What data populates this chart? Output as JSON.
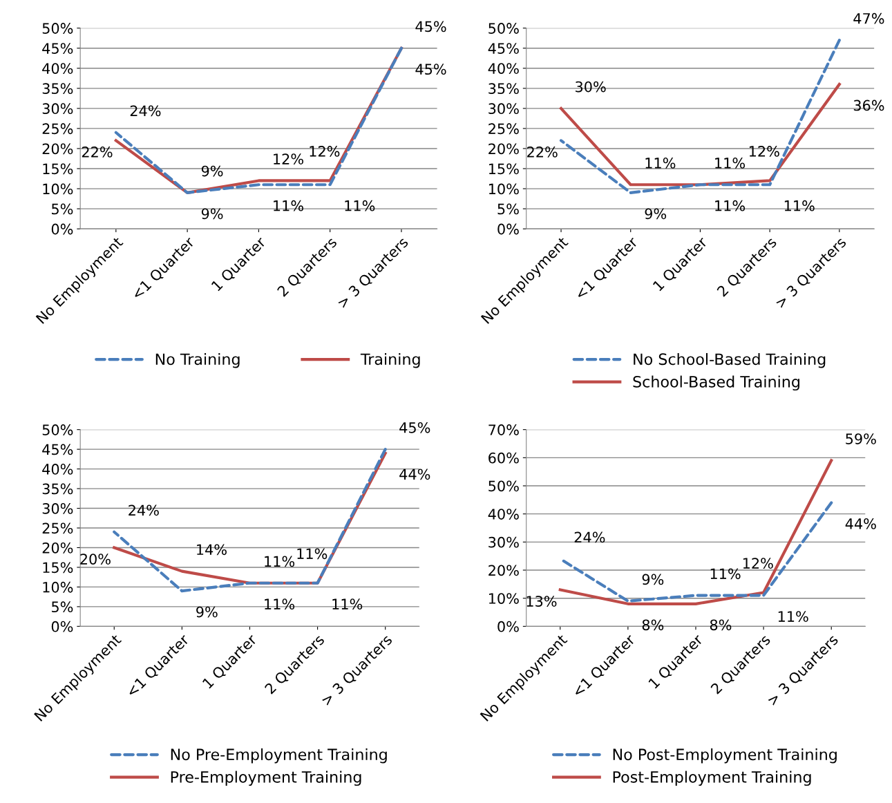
{
  "chart_data": [
    {
      "type": "line",
      "categories": [
        "No Employment",
        "<1 Quarter",
        "1 Quarter",
        "2 Quarters",
        "> 3 Quarters"
      ],
      "ylim": [
        0,
        50
      ],
      "yticks": [
        {
          "value": 0,
          "label": "0%"
        },
        {
          "value": 5,
          "label": "5%"
        },
        {
          "value": 10,
          "label": "10%"
        },
        {
          "value": 15,
          "label": "15%"
        },
        {
          "value": 20,
          "label": "20%"
        },
        {
          "value": 25,
          "label": "25%"
        },
        {
          "value": 30,
          "label": "30%"
        },
        {
          "value": 35,
          "label": "35%"
        },
        {
          "value": 40,
          "label": "40%"
        },
        {
          "value": 45,
          "label": "45%"
        },
        {
          "value": 50,
          "label": "50%"
        }
      ],
      "grid": "y",
      "legend": "bottom",
      "marker": "none",
      "series": [
        {
          "name": "No Training",
          "color": "#4a7ebb",
          "line_style": "dashed",
          "values": [
            24,
            9,
            11,
            11,
            45
          ],
          "value_labels": [
            "24%",
            "9%",
            "11%",
            "11%",
            "45%"
          ]
        },
        {
          "name": "Training",
          "color": "#be4b48",
          "line_style": "solid",
          "values": [
            22,
            9,
            12,
            12,
            45
          ],
          "value_labels": [
            "22%",
            "9%",
            "12%",
            "12%",
            "45%"
          ]
        }
      ]
    },
    {
      "type": "line",
      "categories": [
        "No Employment",
        "<1 Quarter",
        "1 Quarter",
        "2 Quarters",
        "> 3 Quarters"
      ],
      "ylim": [
        0,
        50
      ],
      "yticks": [
        {
          "value": 0,
          "label": "0%"
        },
        {
          "value": 5,
          "label": "5%"
        },
        {
          "value": 10,
          "label": "10%"
        },
        {
          "value": 15,
          "label": "15%"
        },
        {
          "value": 20,
          "label": "20%"
        },
        {
          "value": 25,
          "label": "25%"
        },
        {
          "value": 30,
          "label": "30%"
        },
        {
          "value": 35,
          "label": "35%"
        },
        {
          "value": 40,
          "label": "40%"
        },
        {
          "value": 45,
          "label": "45%"
        },
        {
          "value": 50,
          "label": "50%"
        }
      ],
      "grid": "y",
      "legend": "bottom",
      "marker": "none",
      "series": [
        {
          "name": "No School-Based Training",
          "color": "#4a7ebb",
          "line_style": "dashed",
          "values": [
            22,
            9,
            11,
            11,
            47
          ],
          "value_labels": [
            "22%",
            "9%",
            "11%",
            "11%",
            "47%"
          ]
        },
        {
          "name": "School-Based Training",
          "color": "#be4b48",
          "line_style": "solid",
          "values": [
            30,
            11,
            11,
            12,
            36
          ],
          "value_labels": [
            "30%",
            "11%",
            "11%",
            "12%",
            "36%"
          ]
        }
      ]
    },
    {
      "type": "line",
      "categories": [
        "No Employment",
        "<1 Quarter",
        "1 Quarter",
        "2 Quarters",
        "> 3 Quarters"
      ],
      "ylim": [
        0,
        50
      ],
      "yticks": [
        {
          "value": 0,
          "label": "0%"
        },
        {
          "value": 5,
          "label": "5%"
        },
        {
          "value": 10,
          "label": "10%"
        },
        {
          "value": 15,
          "label": "15%"
        },
        {
          "value": 20,
          "label": "20%"
        },
        {
          "value": 25,
          "label": "25%"
        },
        {
          "value": 30,
          "label": "30%"
        },
        {
          "value": 35,
          "label": "35%"
        },
        {
          "value": 40,
          "label": "40%"
        },
        {
          "value": 45,
          "label": "45%"
        },
        {
          "value": 50,
          "label": "50%"
        }
      ],
      "grid": "y",
      "legend": "bottom",
      "marker": "none",
      "series": [
        {
          "name": "No Pre-Employment Training",
          "color": "#4a7ebb",
          "line_style": "dashed",
          "values": [
            24,
            9,
            11,
            11,
            45
          ],
          "value_labels": [
            "24%",
            "9%",
            "11%",
            "11%",
            "45%"
          ]
        },
        {
          "name": "Pre-Employment Training",
          "color": "#be4b48",
          "line_style": "solid",
          "values": [
            20,
            14,
            11,
            11,
            44
          ],
          "value_labels": [
            "20%",
            "14%",
            "11%",
            "11%",
            "44%"
          ]
        }
      ]
    },
    {
      "type": "line",
      "categories": [
        "No Employment",
        "<1 Quarter",
        "1 Quarter",
        "2 Quarters",
        "> 3 Quarters"
      ],
      "ylim": [
        0,
        70
      ],
      "yticks": [
        {
          "value": 0,
          "label": "0%"
        },
        {
          "value": 10,
          "label": "10%"
        },
        {
          "value": 20,
          "label": "20%"
        },
        {
          "value": 30,
          "label": "30%"
        },
        {
          "value": 40,
          "label": "40%"
        },
        {
          "value": 50,
          "label": "50%"
        },
        {
          "value": 60,
          "label": "60%"
        },
        {
          "value": 70,
          "label": "70%"
        }
      ],
      "grid": "y",
      "legend": "bottom",
      "marker": "none",
      "series": [
        {
          "name": "No Post-Employment Training",
          "color": "#4a7ebb",
          "line_style": "dashed",
          "values": [
            24,
            9,
            11,
            11,
            44
          ],
          "value_labels": [
            "24%",
            "9%",
            "11%",
            "11%",
            "44%"
          ]
        },
        {
          "name": "Post-Employment Training",
          "color": "#be4b48",
          "line_style": "solid",
          "values": [
            13,
            8,
            8,
            12,
            59
          ],
          "value_labels": [
            "13%",
            "8%",
            "8%",
            "12%",
            "59%"
          ]
        }
      ]
    }
  ]
}
